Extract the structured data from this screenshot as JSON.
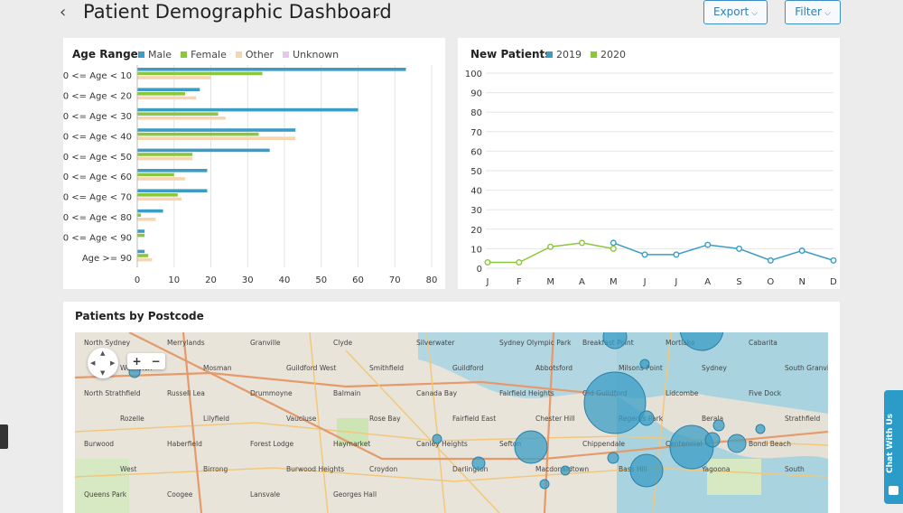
{
  "header": {
    "back_icon": "chevron-left-icon",
    "title": "Patient Demographic Dashboard",
    "title_caret_icon": "chevron-down-icon",
    "export_label": "Export",
    "filter_label": "Filter"
  },
  "colors": {
    "male": "#3b9dc6",
    "female": "#8cc63f",
    "other": "#f6d6b1",
    "unknown": "#e4c8ea",
    "y2019": "#3b9dc6",
    "y2020": "#8cc63f",
    "accent": "#2f7fb5"
  },
  "age_card": {
    "title": "Age Range"
  },
  "new_card": {
    "title": "New Patients"
  },
  "map_card": {
    "title": "Patients by Postcode",
    "zoom_in": "+",
    "zoom_out": "−",
    "pan_icon": "pan-arrows-icon",
    "place_labels": [
      "North Sydney",
      "Merrylands",
      "Granville",
      "Clyde",
      "Silverwater",
      "Sydney Olympic Park",
      "Breakfast Point",
      "Mortlake",
      "Cabarita",
      "Woolwich",
      "Mosman",
      "Guildford West",
      "Smithfield",
      "Guildford",
      "Abbotsford",
      "Milsons Point",
      "Sydney",
      "South Granville",
      "North Strathfield",
      "Russell Lea",
      "Drummoyne",
      "Balmain",
      "Canada Bay",
      "Fairfield Heights",
      "Old Guildford",
      "Lidcombe",
      "Five Dock",
      "Rozelle",
      "Lilyfield",
      "Vaucluse",
      "Rose Bay",
      "Fairfield East",
      "Chester Hill",
      "Regents Park",
      "Berala",
      "Strathfield",
      "Burwood",
      "Haberfield",
      "Forest Lodge",
      "Haymarket",
      "Canley Heights",
      "Sefton",
      "Chippendale",
      "Centennial",
      "Bondi Beach",
      "West",
      "Birrong",
      "Burwood Heights",
      "Croydon",
      "Darlington",
      "Macdonaldtown",
      "Bass Hill",
      "Yagoona",
      "South",
      "Queens Park",
      "Coogee",
      "Lansvale",
      "Georges Hall"
    ]
  },
  "chat": {
    "label": "Chat With Us",
    "icon": "chat-bubble-icon"
  },
  "side_stub_icon": "feedback-tab-icon",
  "chart_data": [
    {
      "type": "bar",
      "orientation": "horizontal",
      "title": "Age Range",
      "categories": [
        "0 <= Age < 10",
        "10 <= Age < 20",
        "20 <= Age < 30",
        "30 <= Age < 40",
        "40 <= Age < 50",
        "50 <= Age < 60",
        "60 <= Age < 70",
        "70 <= Age < 80",
        "80 <= Age < 90",
        "Age >= 90"
      ],
      "series": [
        {
          "name": "Male",
          "values": [
            73,
            17,
            60,
            43,
            36,
            19,
            19,
            7,
            2,
            2
          ]
        },
        {
          "name": "Female",
          "values": [
            34,
            13,
            22,
            33,
            15,
            10,
            11,
            1,
            2,
            3
          ]
        },
        {
          "name": "Other",
          "values": [
            20,
            16,
            24,
            43,
            15,
            13,
            12,
            5,
            0,
            4
          ]
        },
        {
          "name": "Unknown",
          "values": [
            0,
            0,
            0,
            0,
            0,
            0,
            0,
            0,
            0,
            0
          ]
        }
      ],
      "xticks": [
        "0",
        "10",
        "20",
        "30",
        "40",
        "50",
        "60",
        "70",
        "80"
      ],
      "xlim": [
        0,
        80
      ],
      "grid": true,
      "legend": "top"
    },
    {
      "type": "line",
      "title": "New Patients",
      "categories": [
        "J",
        "F",
        "M",
        "A",
        "M",
        "J",
        "J",
        "A",
        "S",
        "O",
        "N",
        "D"
      ],
      "series": [
        {
          "name": "2019",
          "values": [
            null,
            null,
            null,
            null,
            13,
            7,
            7,
            12,
            10,
            4,
            9,
            4
          ]
        },
        {
          "name": "2020",
          "values": [
            3,
            3,
            11,
            13,
            10,
            null,
            null,
            null,
            null,
            null,
            null,
            null
          ]
        }
      ],
      "yticks": [
        "0",
        "10",
        "20",
        "30",
        "40",
        "50",
        "60",
        "70",
        "80",
        "90",
        "100"
      ],
      "ylim": [
        0,
        100
      ],
      "grid": true,
      "legend": "top"
    }
  ]
}
